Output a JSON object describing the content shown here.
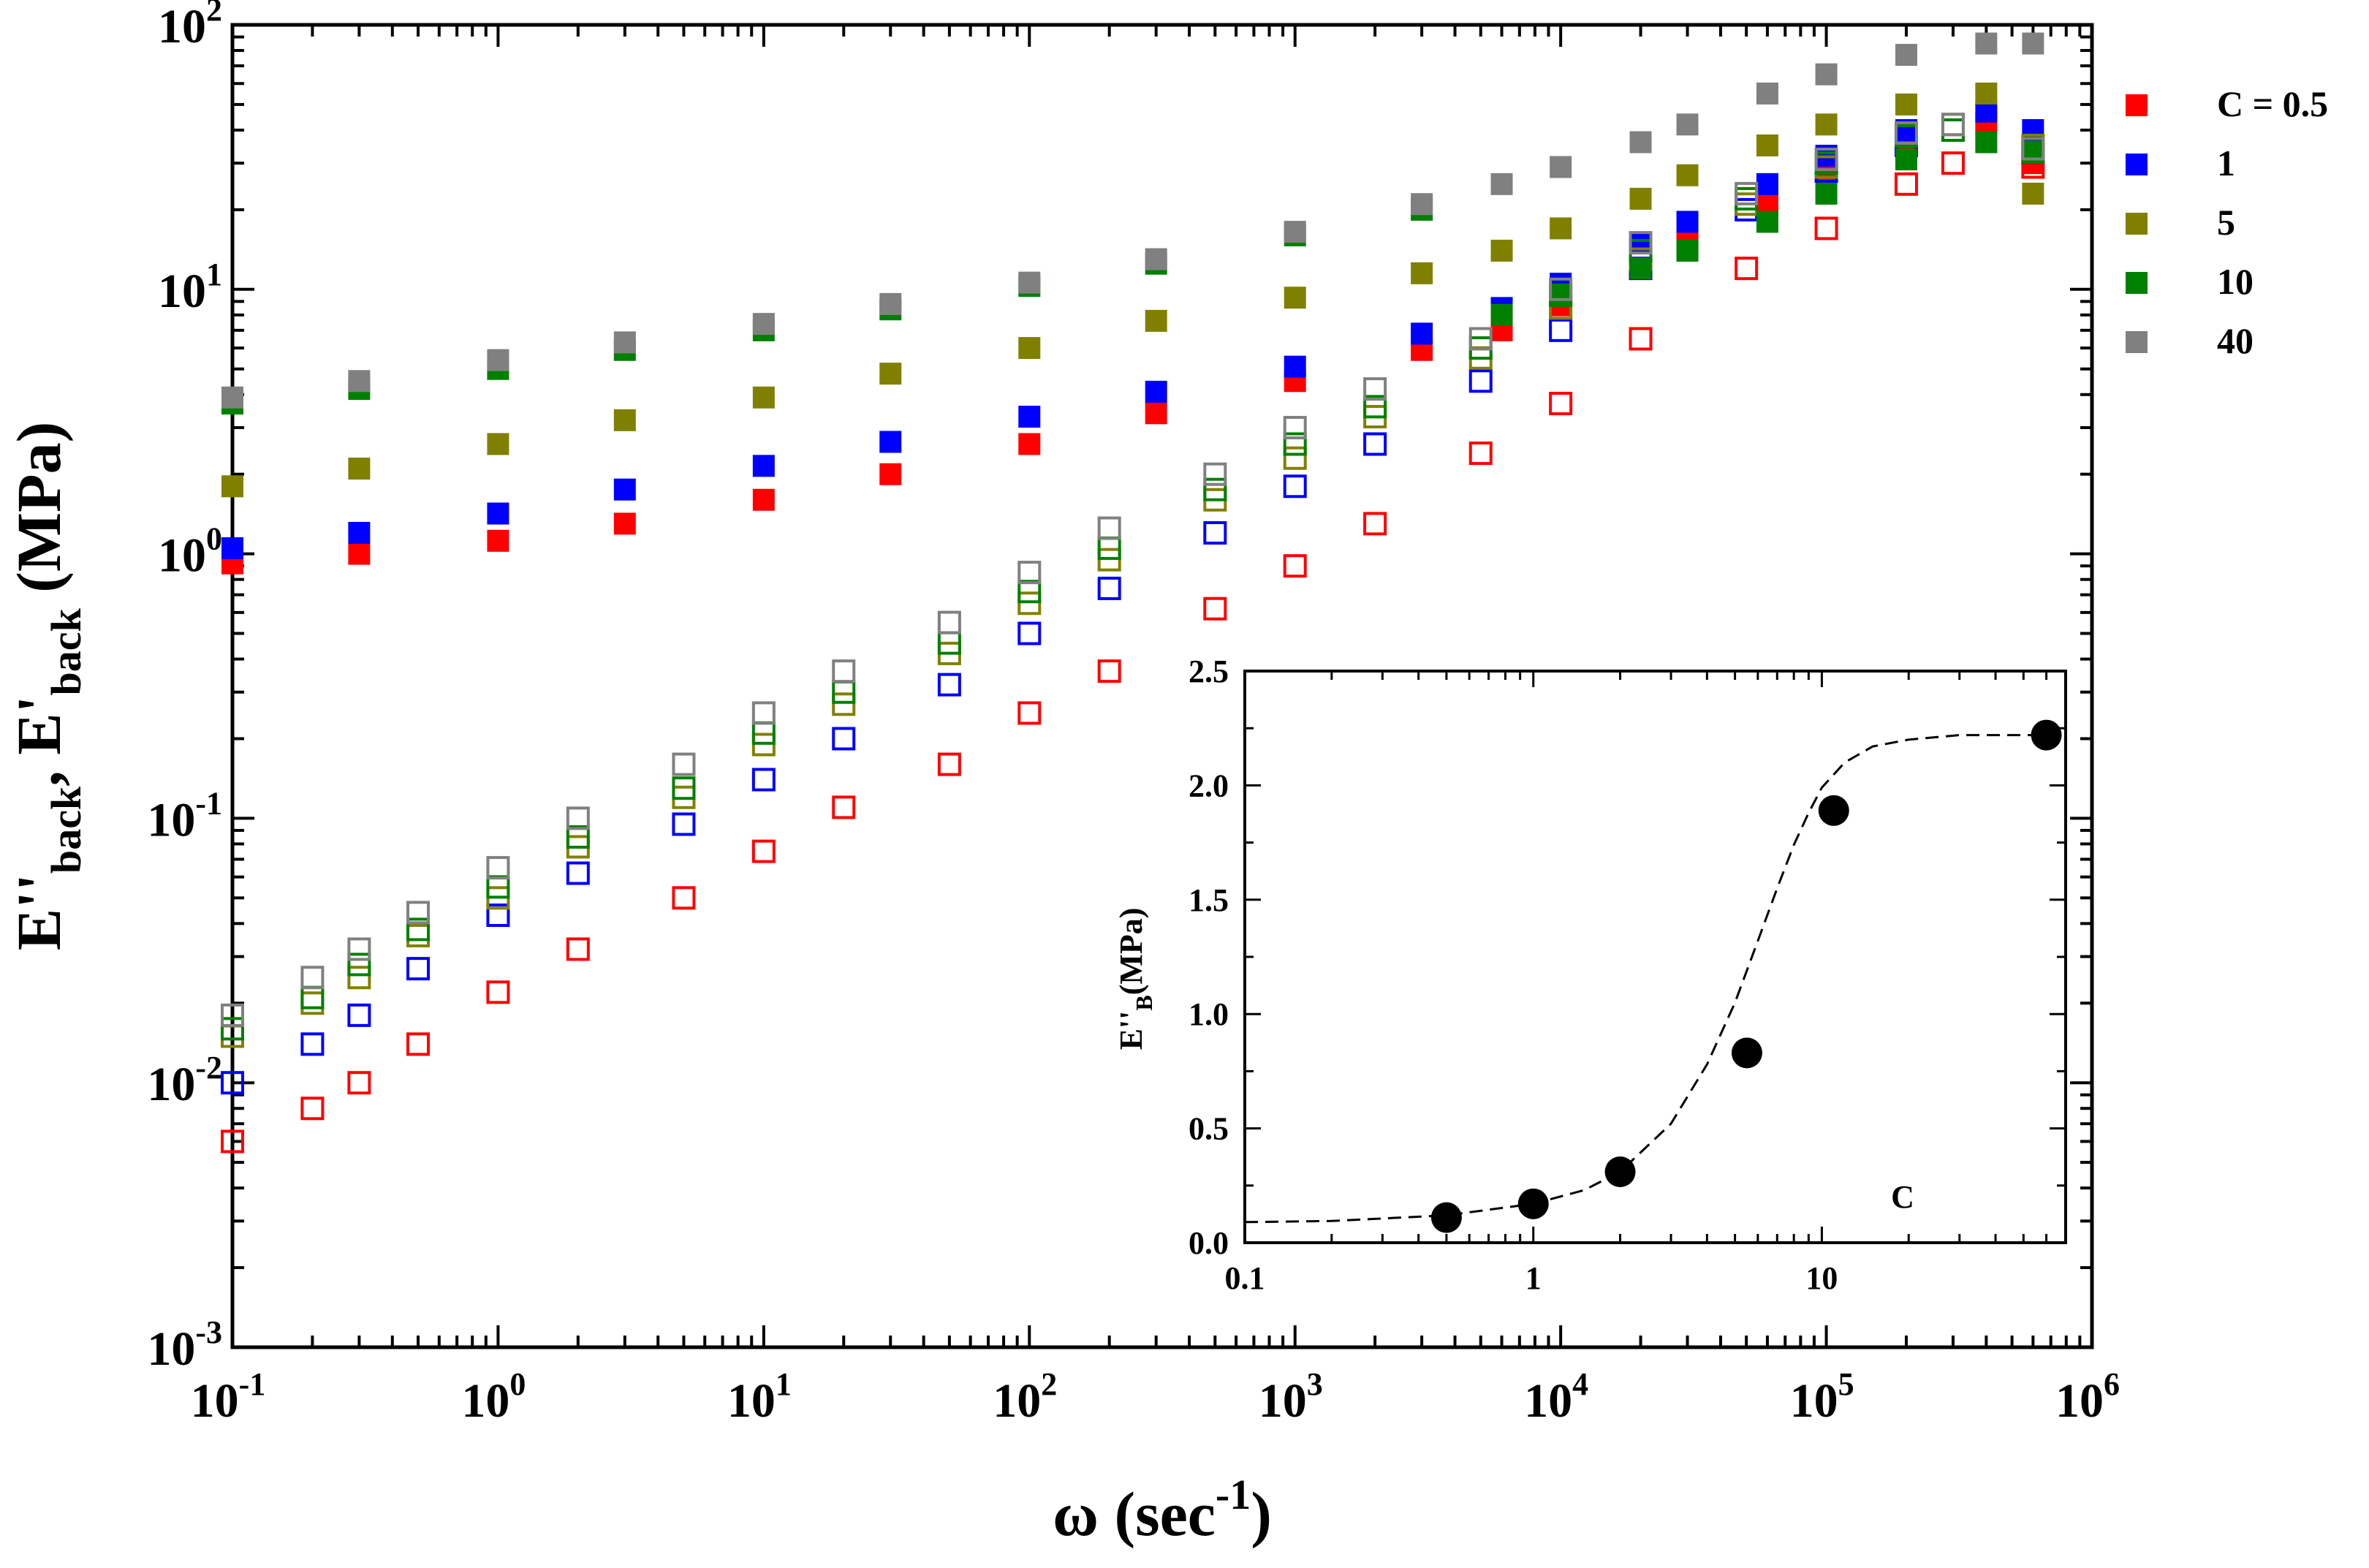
{
  "chart_data": [
    {
      "type": "scatter",
      "xlabel": "ω (sec-1)",
      "ylabel": "E''back, E'back (MPa)",
      "x_scale": "log",
      "y_scale": "log",
      "xlim": [
        0.1,
        1000000
      ],
      "ylim": [
        0.001,
        100
      ],
      "x_ticks": [
        "10-1",
        "100",
        "101",
        "102",
        "103",
        "104",
        "105",
        "106"
      ],
      "y_ticks": [
        "10-3",
        "10-2",
        "10-1",
        "100",
        "101",
        "102"
      ],
      "legend_position": "right, outside plot",
      "series": [
        {
          "name": "C = 0.5",
          "color": "#ff0000",
          "storage_filled": {
            "x": [
              0.1,
              0.3,
              1,
              3,
              10,
              30,
              100,
              300,
              1000,
              3000,
              6000,
              10000,
              20000,
              30000,
              60000,
              100000,
              200000,
              400000,
              600000
            ],
            "y": [
              0.92,
              1.0,
              1.12,
              1.3,
              1.6,
              2.0,
              2.6,
              3.4,
              4.5,
              5.9,
              7.0,
              8.7,
              12,
              15,
              21,
              28,
              36,
              42,
              30
            ]
          },
          "loss_open": {
            "x": [
              0.1,
              0.2,
              0.3,
              0.5,
              1,
              2,
              5,
              10,
              20,
              50,
              100,
              200,
              500,
              1000,
              2000,
              5000,
              10000,
              20000,
              50000,
              100000,
              200000,
              300000,
              600000
            ],
            "y": [
              0.006,
              0.008,
              0.01,
              0.014,
              0.022,
              0.032,
              0.05,
              0.075,
              0.11,
              0.16,
              0.25,
              0.36,
              0.62,
              0.9,
              1.3,
              2.4,
              3.7,
              6.5,
              12,
              17,
              25,
              30,
              29
            ]
          }
        },
        {
          "name": "1",
          "color": "#0000ff",
          "storage_filled": {
            "x": [
              0.1,
              0.3,
              1,
              3,
              10,
              30,
              100,
              300,
              1000,
              3000,
              6000,
              10000,
              20000,
              30000,
              60000,
              100000,
              200000,
              400000,
              600000
            ],
            "y": [
              1.05,
              1.2,
              1.42,
              1.75,
              2.15,
              2.65,
              3.3,
              4.1,
              5.1,
              6.8,
              8.5,
              10.5,
              15,
              18,
              25,
              32,
              40,
              47,
              40
            ]
          },
          "loss_open": {
            "x": [
              0.1,
              0.2,
              0.3,
              0.5,
              1,
              2,
              5,
              10,
              20,
              50,
              100,
              200,
              500,
              1000,
              2000,
              5000,
              10000,
              20000,
              50000,
              100000,
              200000,
              300000,
              600000
            ],
            "y": [
              0.01,
              0.014,
              0.018,
              0.027,
              0.043,
              0.062,
              0.095,
              0.14,
              0.2,
              0.32,
              0.5,
              0.74,
              1.2,
              1.8,
              2.6,
              4.5,
              7,
              12,
              20,
              28,
              35,
              40,
              33
            ]
          }
        },
        {
          "name": "5",
          "color": "#808000",
          "storage_filled": {
            "x": [
              0.1,
              0.3,
              1,
              3,
              10,
              30,
              100,
              300,
              1000,
              3000,
              6000,
              10000,
              20000,
              30000,
              60000,
              100000,
              200000,
              400000,
              600000
            ],
            "y": [
              1.8,
              2.1,
              2.6,
              3.2,
              3.9,
              4.8,
              6.0,
              7.6,
              9.3,
              11.5,
              14,
              17,
              22,
              27,
              35,
              42,
              50,
              55,
              23
            ]
          },
          "loss_open": {
            "x": [
              0.1,
              0.2,
              0.3,
              0.5,
              1,
              2,
              5,
              10,
              20,
              50,
              100,
              200,
              500,
              1000,
              2000,
              5000,
              10000,
              20000,
              50000,
              100000,
              200000,
              300000,
              600000
            ],
            "y": [
              0.015,
              0.02,
              0.025,
              0.036,
              0.05,
              0.078,
              0.12,
              0.19,
              0.27,
              0.42,
              0.65,
              0.95,
              1.6,
              2.3,
              3.3,
              5.5,
              8.5,
              13,
              21,
              29,
              38,
              42,
              35
            ]
          }
        },
        {
          "name": "10",
          "color": "#008000",
          "storage_filled": {
            "x": [
              0.1,
              0.3,
              1,
              3,
              10,
              30,
              100,
              300,
              1000,
              3000,
              6000,
              10000,
              20000,
              30000,
              60000,
              100000,
              200000,
              400000,
              600000
            ],
            "y": [
              3.7,
              4.2,
              5.0,
              5.9,
              7.0,
              8.4,
              10.3,
              12.5,
              16,
              20,
              8.0,
              9.5,
              12,
              14,
              18,
              23,
              31,
              36,
              33
            ]
          },
          "loss_open": {
            "x": [
              0.1,
              0.2,
              0.3,
              0.5,
              1,
              2,
              5,
              10,
              20,
              50,
              100,
              200,
              500,
              1000,
              2000,
              5000,
              10000,
              20000,
              50000,
              100000,
              200000,
              300000,
              600000
            ],
            "y": [
              0.016,
              0.021,
              0.028,
              0.038,
              0.055,
              0.085,
              0.13,
              0.21,
              0.3,
              0.46,
              0.72,
              1.05,
              1.75,
              2.6,
              3.6,
              6,
              9.5,
              14,
              22,
              30,
              38,
              40,
              33
            ]
          }
        },
        {
          "name": "40",
          "color": "#808080",
          "storage_filled": {
            "x": [
              0.1,
              0.3,
              1,
              3,
              10,
              30,
              100,
              300,
              1000,
              3000,
              6000,
              10000,
              20000,
              30000,
              60000,
              100000,
              200000,
              400000,
              600000
            ],
            "y": [
              3.9,
              4.5,
              5.4,
              6.3,
              7.4,
              8.8,
              10.6,
              13,
              16.5,
              21,
              25,
              29,
              36,
              42,
              55,
              65,
              77,
              85,
              85
            ]
          },
          "loss_open": {
            "x": [
              0.1,
              0.2,
              0.3,
              0.5,
              1,
              2,
              5,
              10,
              20,
              50,
              100,
              200,
              500,
              1000,
              2000,
              5000,
              10000,
              20000,
              50000,
              100000,
              200000,
              300000,
              600000
            ],
            "y": [
              0.018,
              0.025,
              0.032,
              0.044,
              0.065,
              0.1,
              0.16,
              0.25,
              0.36,
              0.55,
              0.85,
              1.25,
              2.0,
              3.0,
              4.2,
              6.5,
              10,
              15,
              23,
              31,
              39,
              42,
              34
            ]
          }
        }
      ]
    },
    {
      "type": "scatter",
      "xlabel": "C",
      "ylabel": "E''B(MPa)",
      "x_scale": "log",
      "y_scale": "linear",
      "xlim": [
        0.1,
        70
      ],
      "ylim": [
        0,
        2.5
      ],
      "x_ticks": [
        "0.1",
        "1",
        "10"
      ],
      "y_ticks": [
        "0.0",
        "0.5",
        "1.0",
        "1.5",
        "2.0",
        "2.5"
      ],
      "points": {
        "x": [
          0.5,
          1,
          2,
          5.5,
          11,
          60
        ],
        "y": [
          0.11,
          0.17,
          0.31,
          0.83,
          1.89,
          2.22
        ]
      },
      "fit_curve": {
        "style": "dashed",
        "x": [
          0.1,
          0.2,
          0.5,
          1,
          1.5,
          2,
          3,
          4,
          5,
          6,
          7,
          8,
          9,
          10,
          12,
          15,
          20,
          30,
          70
        ],
        "y": [
          0.09,
          0.095,
          0.12,
          0.17,
          0.23,
          0.31,
          0.52,
          0.78,
          1.05,
          1.32,
          1.55,
          1.74,
          1.88,
          1.99,
          2.1,
          2.17,
          2.2,
          2.22,
          2.22
        ]
      }
    }
  ]
}
